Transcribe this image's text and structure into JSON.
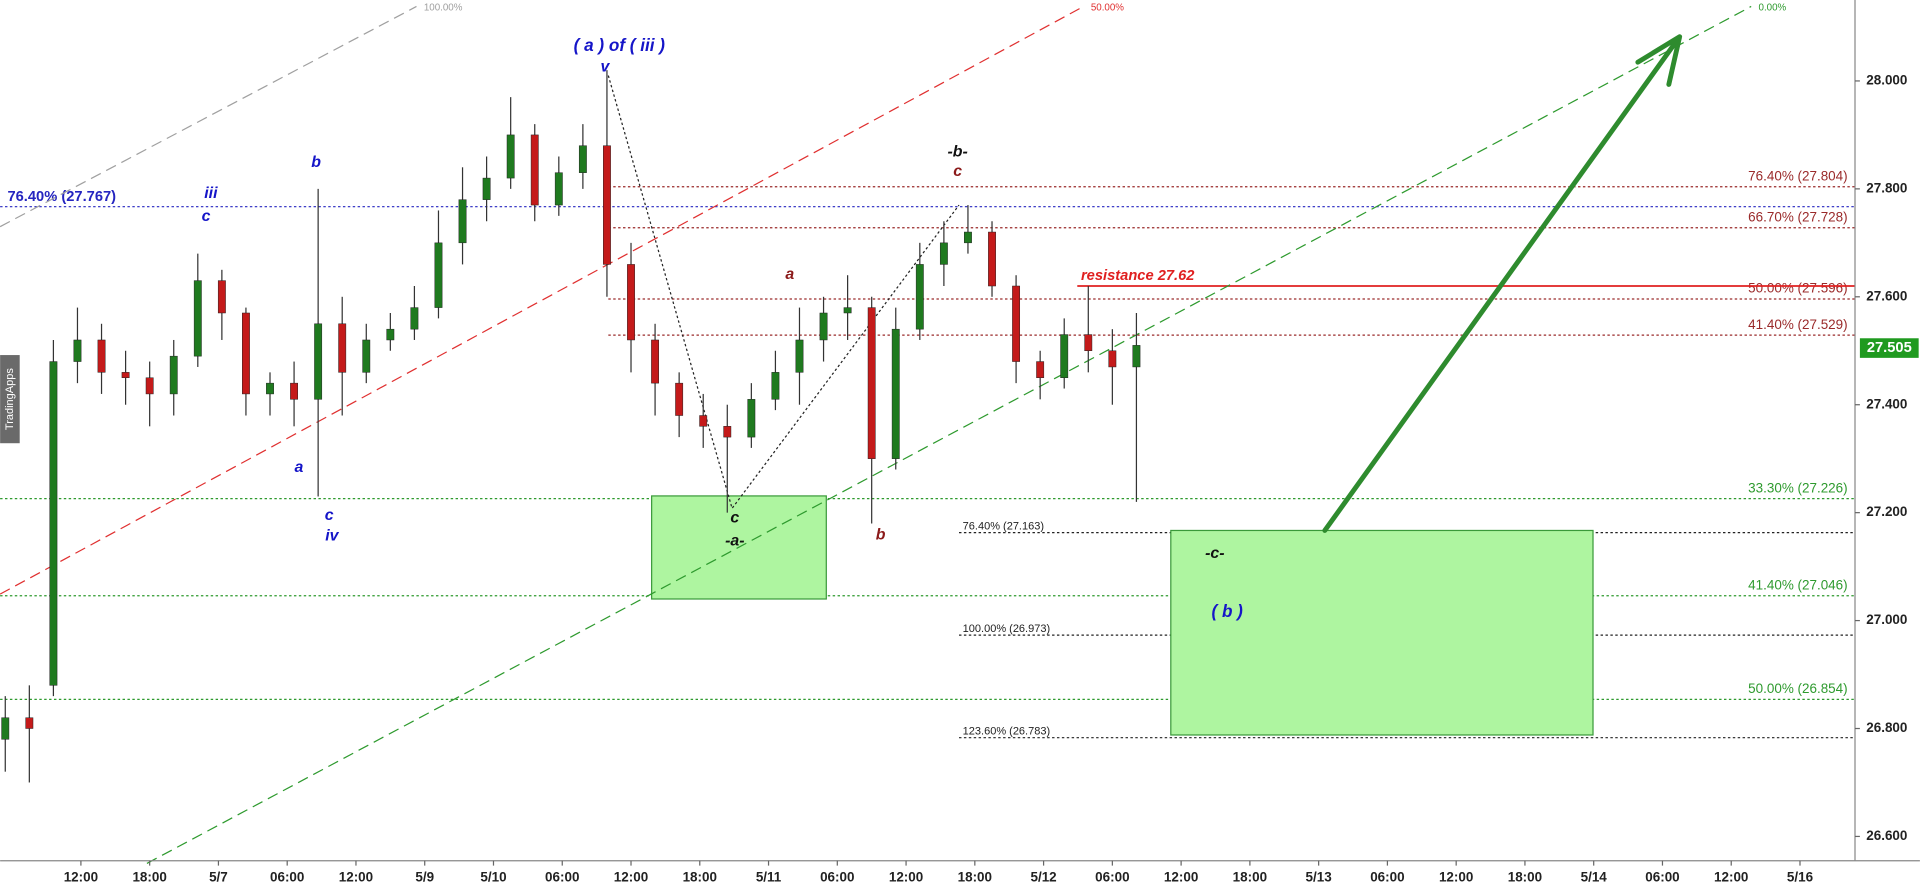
{
  "chart_data": {
    "type": "candlestick",
    "watermark": "TradingApps",
    "xlim": [
      -1.175,
      25.8
    ],
    "ylim": [
      26.555,
      28.15
    ],
    "xticks": [
      {
        "value": 0,
        "label": "12:00"
      },
      {
        "value": 1,
        "label": "18:00"
      },
      {
        "value": 2,
        "label": "5/7"
      },
      {
        "value": 3,
        "label": "06:00"
      },
      {
        "value": 4,
        "label": "12:00"
      },
      {
        "value": 5,
        "label": "5/9"
      },
      {
        "value": 6,
        "label": "5/10"
      },
      {
        "value": 7,
        "label": "06:00"
      },
      {
        "value": 8,
        "label": "12:00"
      },
      {
        "value": 9,
        "label": "18:00"
      },
      {
        "value": 10,
        "label": "5/11"
      },
      {
        "value": 11,
        "label": "06:00"
      },
      {
        "value": 12,
        "label": "12:00"
      },
      {
        "value": 13,
        "label": "18:00"
      },
      {
        "value": 14,
        "label": "5/12"
      },
      {
        "value": 15,
        "label": "06:00"
      },
      {
        "value": 16,
        "label": "12:00"
      },
      {
        "value": 17,
        "label": "18:00"
      },
      {
        "value": 18,
        "label": "5/13"
      },
      {
        "value": 19,
        "label": "06:00"
      },
      {
        "value": 20,
        "label": "12:00"
      },
      {
        "value": 21,
        "label": "18:00"
      },
      {
        "value": 22,
        "label": "5/14"
      },
      {
        "value": 23,
        "label": "06:00"
      },
      {
        "value": 24,
        "label": "12:00"
      },
      {
        "value": 25,
        "label": "5/16"
      }
    ],
    "yticks": [
      {
        "value": 26.6,
        "label": "26.600"
      },
      {
        "value": 26.8,
        "label": "26.800"
      },
      {
        "value": 27.0,
        "label": "27.000"
      },
      {
        "value": 27.2,
        "label": "27.200"
      },
      {
        "value": 27.4,
        "label": "27.400"
      },
      {
        "value": 27.6,
        "label": "27.600"
      },
      {
        "value": 27.8,
        "label": "27.800"
      },
      {
        "value": 28.0,
        "label": "28.000"
      }
    ],
    "up_color": "#1f7a1f",
    "down_color": "#c41a1a",
    "x": [
      -1.1,
      -0.75,
      -0.4,
      -0.05,
      0.3,
      0.65,
      1.0,
      1.35,
      1.7,
      2.05,
      2.4,
      2.75,
      3.1,
      3.45,
      3.8,
      4.15,
      4.5,
      4.85,
      5.2,
      5.55,
      5.9,
      6.25,
      6.6,
      6.95,
      7.3,
      7.65,
      8.0,
      8.35,
      8.7,
      9.05,
      9.4,
      9.75,
      10.1,
      10.45,
      10.8,
      11.15,
      11.5,
      11.85,
      12.2,
      12.55,
      12.9,
      13.25,
      13.6,
      13.95,
      14.3,
      14.65,
      15.0,
      15.35
    ],
    "open": [
      26.78,
      26.82,
      26.88,
      27.48,
      27.52,
      27.46,
      27.45,
      27.42,
      27.49,
      27.63,
      27.57,
      27.42,
      27.44,
      27.41,
      27.55,
      27.46,
      27.52,
      27.54,
      27.58,
      27.7,
      27.78,
      27.82,
      27.9,
      27.77,
      27.83,
      27.88,
      27.66,
      27.52,
      27.44,
      27.38,
      27.36,
      27.34,
      27.41,
      27.46,
      27.52,
      27.57,
      27.58,
      27.3,
      27.54,
      27.66,
      27.7,
      27.72,
      27.62,
      27.48,
      27.45,
      27.53,
      27.5,
      27.47
    ],
    "high": [
      26.86,
      26.88,
      27.52,
      27.58,
      27.55,
      27.5,
      27.48,
      27.52,
      27.68,
      27.65,
      27.58,
      27.46,
      27.48,
      27.8,
      27.6,
      27.55,
      27.57,
      27.62,
      27.76,
      27.84,
      27.86,
      27.97,
      27.92,
      27.86,
      27.92,
      28.02,
      27.7,
      27.55,
      27.46,
      27.42,
      27.4,
      27.44,
      27.5,
      27.58,
      27.6,
      27.64,
      27.6,
      27.58,
      27.7,
      27.74,
      27.77,
      27.74,
      27.64,
      27.5,
      27.56,
      27.62,
      27.54,
      27.57
    ],
    "low": [
      26.72,
      26.7,
      26.86,
      27.44,
      27.42,
      27.4,
      27.36,
      27.38,
      27.47,
      27.52,
      27.38,
      27.38,
      27.36,
      27.23,
      27.38,
      27.44,
      27.5,
      27.52,
      27.56,
      27.66,
      27.74,
      27.8,
      27.74,
      27.75,
      27.8,
      27.6,
      27.46,
      27.38,
      27.34,
      27.32,
      27.2,
      27.32,
      27.39,
      27.4,
      27.48,
      27.52,
      27.18,
      27.28,
      27.52,
      27.62,
      27.68,
      27.6,
      27.44,
      27.41,
      27.43,
      27.46,
      27.4,
      27.22
    ],
    "close": [
      26.82,
      26.8,
      27.48,
      27.52,
      27.46,
      27.45,
      27.42,
      27.49,
      27.63,
      27.57,
      27.42,
      27.44,
      27.41,
      27.55,
      27.46,
      27.52,
      27.54,
      27.58,
      27.7,
      27.78,
      27.82,
      27.9,
      27.77,
      27.83,
      27.88,
      27.66,
      27.52,
      27.44,
      27.38,
      27.36,
      27.34,
      27.41,
      27.46,
      27.52,
      27.57,
      27.58,
      27.3,
      27.54,
      27.66,
      27.7,
      27.72,
      27.62,
      27.48,
      27.45,
      27.53,
      27.5,
      27.47,
      27.51
    ],
    "last": 27.505,
    "last_color": "#1f9a1f",
    "levels": [
      {
        "value": 27.767,
        "label": "76.40% (27.767)",
        "color": "#2525c0",
        "style": "dotted",
        "start": -1.175,
        "label_at": "left"
      },
      {
        "value": 27.804,
        "label": "76.40% (27.804)",
        "color": "#9a2a2a",
        "style": "dotted",
        "start": 7.67,
        "label_at": "right"
      },
      {
        "value": 27.728,
        "label": "66.70% (27.728)",
        "color": "#9a2a2a",
        "style": "dotted",
        "start": 7.67,
        "label_at": "right"
      },
      {
        "value": 27.596,
        "label": "50.00% (27.596)",
        "color": "#9a2a2a",
        "style": "dotted",
        "start": 7.67,
        "label_at": "right"
      },
      {
        "value": 27.529,
        "label": "41.40% (27.529)",
        "color": "#9a2a2a",
        "style": "dotted",
        "start": 7.67,
        "label_at": "right"
      },
      {
        "value": 27.62,
        "label": "resistance 27.62",
        "color": "#e02020",
        "style": "solid",
        "start": 14.49,
        "label_at": "start"
      },
      {
        "value": 27.226,
        "label": "33.30% (27.226)",
        "color": "#2e9a2e",
        "style": "dotted",
        "start": -1.175,
        "label_at": "right"
      },
      {
        "value": 27.046,
        "label": "41.40% (27.046)",
        "color": "#2e9a2e",
        "style": "dotted",
        "start": -1.175,
        "label_at": "right"
      },
      {
        "value": 26.854,
        "label": "50.00% (26.854)",
        "color": "#2e9a2e",
        "style": "dotted",
        "start": -1.175,
        "label_at": "right"
      },
      {
        "value": 27.163,
        "label": "76.40% (27.163)",
        "color": "#222222",
        "style": "dotted",
        "start": 12.77,
        "label_at": "start"
      },
      {
        "value": 26.973,
        "label": "100.00% (26.973)",
        "color": "#222222",
        "style": "dotted",
        "start": 12.77,
        "label_at": "start"
      },
      {
        "value": 26.783,
        "label": "123.60% (26.783)",
        "color": "#222222",
        "style": "dotted",
        "start": 12.77,
        "label_at": "start"
      }
    ],
    "trendlines": [
      {
        "label": "100.00%",
        "color": "#a0a0a0",
        "x": [
          -1.175,
          4.88
        ],
        "y": [
          27.73,
          28.138
        ]
      },
      {
        "label": "50.00%",
        "color": "#e03030",
        "x": [
          -1.175,
          14.58
        ],
        "y": [
          27.049,
          28.138
        ]
      },
      {
        "label": "0.00%",
        "color": "#2e9a2e",
        "x": [
          0.96,
          24.29
        ],
        "y": [
          26.55,
          28.138
        ]
      }
    ],
    "zigzag": {
      "color": "#222222",
      "x": [
        7.67,
        9.47,
        12.77
      ],
      "y": [
        28.01,
        27.208,
        27.77
      ]
    },
    "arrow": {
      "color": "#2e8b2e",
      "x": [
        18.09,
        23.25
      ],
      "y": [
        27.167,
        28.082
      ]
    },
    "boxes": [
      {
        "x": [
          8.3,
          10.84
        ],
        "y": [
          27.231,
          27.04
        ]
      },
      {
        "x": [
          15.85,
          21.99
        ],
        "y": [
          27.167,
          26.788
        ]
      }
    ],
    "annotations": [
      {
        "text": "( a ) of ( iii )",
        "x": 7.83,
        "y": 28.064,
        "color": "#1515c8"
      },
      {
        "text": "v",
        "x": 7.62,
        "y": 28.025,
        "color": "#1515c8"
      },
      {
        "text": "b",
        "x": 3.42,
        "y": 27.848,
        "color": "#1515c8"
      },
      {
        "text": "iii",
        "x": 1.89,
        "y": 27.791,
        "color": "#1515c8"
      },
      {
        "text": "c",
        "x": 1.82,
        "y": 27.748,
        "color": "#1515c8"
      },
      {
        "text": "a",
        "x": 3.17,
        "y": 27.283,
        "color": "#1515c8"
      },
      {
        "text": "c",
        "x": 3.61,
        "y": 27.194,
        "color": "#1515c8"
      },
      {
        "text": "iv",
        "x": 3.65,
        "y": 27.156,
        "color": "#1515c8"
      },
      {
        "text": "-b-",
        "x": 12.75,
        "y": 27.868,
        "color": "#111111"
      },
      {
        "text": "c",
        "x": 12.75,
        "y": 27.832,
        "color": "#8b1a1a"
      },
      {
        "text": "a",
        "x": 10.31,
        "y": 27.641,
        "color": "#8b1a1a"
      },
      {
        "text": "b",
        "x": 11.63,
        "y": 27.158,
        "color": "#8b1a1a"
      },
      {
        "text": "c",
        "x": 9.51,
        "y": 27.19,
        "color": "#111111"
      },
      {
        "text": "-a-",
        "x": 9.51,
        "y": 27.147,
        "color": "#111111"
      },
      {
        "text": "-c-",
        "x": 16.49,
        "y": 27.124,
        "color": "#111111"
      },
      {
        "text": "( b )",
        "x": 16.67,
        "y": 27.015,
        "color": "#1515c8"
      }
    ]
  }
}
